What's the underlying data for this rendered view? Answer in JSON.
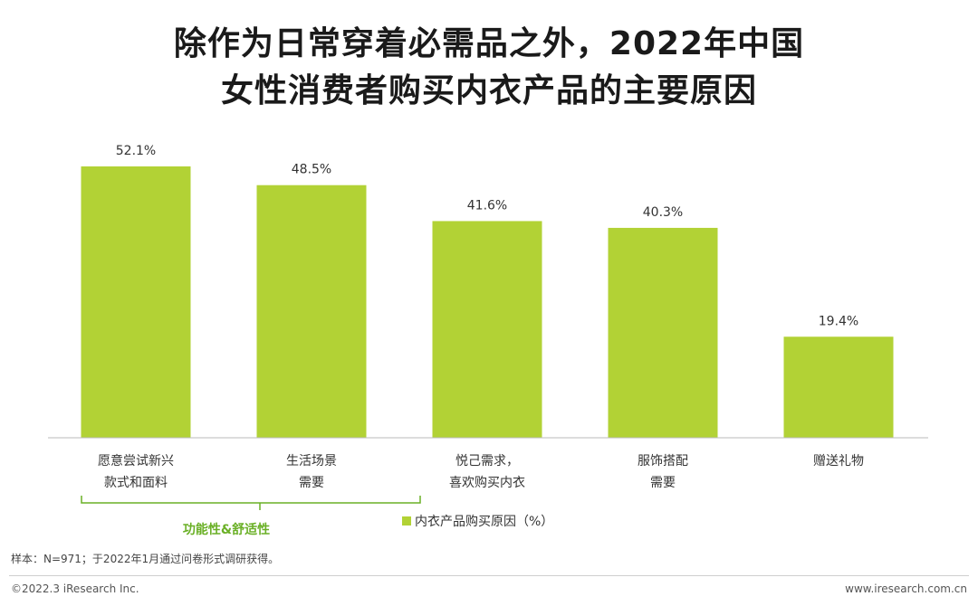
{
  "title_line1": "除作为日常穿着必需品之外，2022年中国",
  "title_line2": "女性消费者购买内衣产品的主要原因",
  "chart_data": {
    "type": "bar",
    "categories": [
      [
        "愿意尝试新兴",
        "款式和面料"
      ],
      [
        "生活场景",
        "需要"
      ],
      [
        "悦己需求，",
        "喜欢购买内衣"
      ],
      [
        "服饰搭配",
        "需要"
      ],
      [
        "赠送礼物"
      ]
    ],
    "series": [
      {
        "name": "内衣产品购买原因（%）",
        "values": [
          52.1,
          48.5,
          41.6,
          40.3,
          19.4
        ]
      }
    ],
    "value_labels": [
      "52.1%",
      "48.5%",
      "41.6%",
      "40.3%",
      "19.4%"
    ],
    "ylim": [
      0,
      58
    ],
    "grid": false,
    "legend_position": "bottom-center",
    "bar_color": "#b2d235",
    "group_bracket": {
      "label": "功能性&舒适性",
      "categories": [
        0,
        1
      ],
      "color": "#6ab026"
    }
  },
  "legend_label": "内衣产品购买原因（%）",
  "bracket_label": "功能性&舒适性",
  "note": "样本：N=971；于2022年1月通过问卷形式调研获得。",
  "footer_left": "©2022.3 iResearch Inc.",
  "footer_right": "www.iresearch.com.cn"
}
